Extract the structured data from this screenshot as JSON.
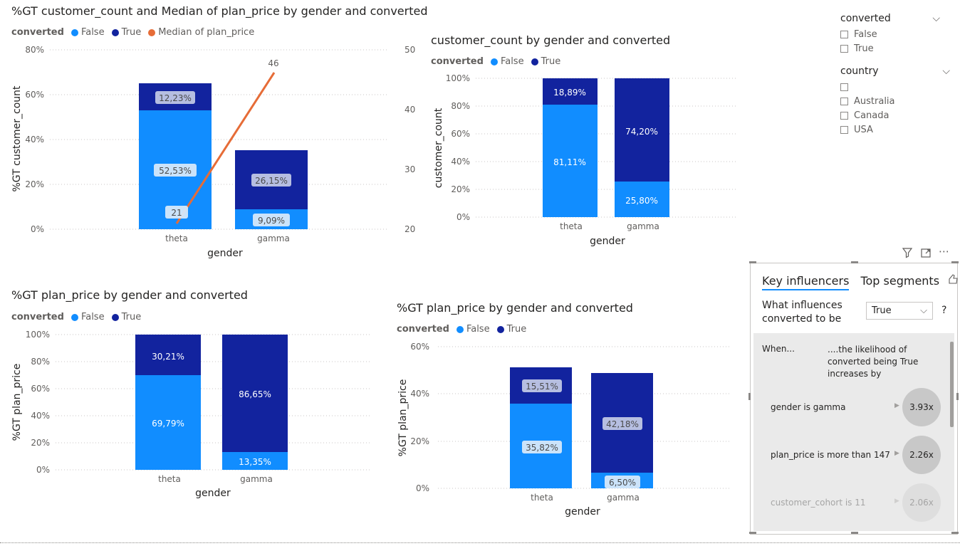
{
  "colors": {
    "false": "#118DFF",
    "true": "#12239E",
    "median": "#E66C37",
    "axis_text": "#605e5c"
  },
  "chart1": {
    "title": "%GT customer_count and Median of plan_price by gender and converted",
    "legend_title": "converted",
    "legend": [
      "False",
      "True",
      "Median of plan_price"
    ],
    "ylabel": "%GT customer_count",
    "xlabel": "gender",
    "yticks": [
      "80%",
      "60%",
      "40%",
      "20%",
      "0%"
    ],
    "y2ticks": [
      "50",
      "40",
      "30",
      "20"
    ],
    "categories": [
      "theta",
      "gamma"
    ],
    "false_labels": [
      "52,53%",
      "9,09%"
    ],
    "true_labels": [
      "12,23%",
      "26,15%"
    ],
    "line_labels": [
      "21",
      "46"
    ]
  },
  "chart2": {
    "title": "customer_count by gender and converted",
    "legend_title": "converted",
    "legend": [
      "False",
      "True"
    ],
    "ylabel": "customer_count",
    "xlabel": "gender",
    "yticks": [
      "100%",
      "80%",
      "60%",
      "40%",
      "20%",
      "0%"
    ],
    "categories": [
      "theta",
      "gamma"
    ],
    "false_labels": [
      "81,11%",
      "25,80%"
    ],
    "true_labels": [
      "18,89%",
      "74,20%"
    ]
  },
  "chart3": {
    "title": "%GT plan_price by gender and converted",
    "legend_title": "converted",
    "legend": [
      "False",
      "True"
    ],
    "ylabel": "%GT plan_price",
    "xlabel": "gender",
    "yticks": [
      "100%",
      "80%",
      "60%",
      "40%",
      "20%",
      "0%"
    ],
    "categories": [
      "theta",
      "gamma"
    ],
    "false_labels": [
      "69,79%",
      "13,35%"
    ],
    "true_labels": [
      "30,21%",
      "86,65%"
    ]
  },
  "chart4": {
    "title": "%GT plan_price by gender and converted",
    "legend_title": "converted",
    "legend": [
      "False",
      "True"
    ],
    "ylabel": "%GT plan_price",
    "xlabel": "gender",
    "yticks": [
      "60%",
      "40%",
      "20%",
      "0%"
    ],
    "categories": [
      "theta",
      "gamma"
    ],
    "false_labels": [
      "35,82%",
      "6,50%"
    ],
    "true_labels": [
      "15,51%",
      "42,18%"
    ]
  },
  "chart_data": [
    {
      "type": "bar",
      "stacked": true,
      "title": "%GT customer_count and Median of plan_price by gender and converted",
      "xlabel": "gender",
      "ylabel": "%GT customer_count",
      "categories": [
        "theta",
        "gamma"
      ],
      "ylim": [
        0,
        80
      ],
      "y2lim": [
        20,
        50
      ],
      "series": [
        {
          "name": "False",
          "values": [
            52.53,
            9.09
          ]
        },
        {
          "name": "True",
          "values": [
            12.23,
            26.15
          ]
        },
        {
          "name": "Median of plan_price",
          "type": "line",
          "axis": "secondary",
          "values": [
            21,
            46
          ]
        }
      ],
      "legend": "top-left",
      "grid": true
    },
    {
      "type": "bar",
      "stacked": true,
      "title": "customer_count by gender and converted",
      "xlabel": "gender",
      "ylabel": "customer_count",
      "categories": [
        "theta",
        "gamma"
      ],
      "ylim": [
        0,
        100
      ],
      "series": [
        {
          "name": "False",
          "values": [
            81.11,
            25.8
          ]
        },
        {
          "name": "True",
          "values": [
            18.89,
            74.2
          ]
        }
      ],
      "legend": "top-left",
      "grid": true
    },
    {
      "type": "bar",
      "stacked": true,
      "title": "%GT plan_price by gender and converted",
      "xlabel": "gender",
      "ylabel": "%GT plan_price",
      "categories": [
        "theta",
        "gamma"
      ],
      "ylim": [
        0,
        100
      ],
      "series": [
        {
          "name": "False",
          "values": [
            69.79,
            13.35
          ]
        },
        {
          "name": "True",
          "values": [
            30.21,
            86.65
          ]
        }
      ],
      "legend": "top-left",
      "grid": true
    },
    {
      "type": "bar",
      "stacked": true,
      "title": "%GT plan_price by gender and converted",
      "xlabel": "gender",
      "ylabel": "%GT plan_price",
      "categories": [
        "theta",
        "gamma"
      ],
      "ylim": [
        0,
        60
      ],
      "series": [
        {
          "name": "False",
          "values": [
            35.82,
            6.5
          ]
        },
        {
          "name": "True",
          "values": [
            15.51,
            42.18
          ]
        }
      ],
      "legend": "top-left",
      "grid": true
    }
  ],
  "slicers": {
    "converted": {
      "title": "converted",
      "options": [
        "False",
        "True"
      ]
    },
    "country": {
      "title": "country",
      "options": [
        "",
        "Australia",
        "Canada",
        "USA"
      ]
    }
  },
  "key_influencers": {
    "tab_active": "Key influencers",
    "tab_other": "Top segments",
    "question": "What influences converted to be",
    "selected_value": "True",
    "help": "?",
    "when_label": "When...",
    "likelihood_label": "....the likelihood of converted being True increases by",
    "items": [
      {
        "label": "gender is gamma",
        "value": "3.93x"
      },
      {
        "label": "plan_price is more than 147",
        "value": "2.26x"
      },
      {
        "label": "customer_cohort is 11",
        "value": "2.06x"
      }
    ]
  }
}
